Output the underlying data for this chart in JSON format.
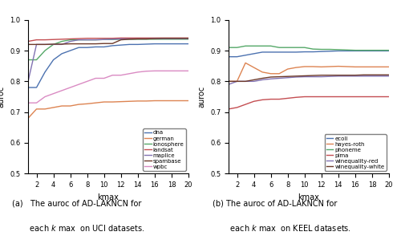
{
  "kmax": [
    1,
    2,
    3,
    4,
    5,
    6,
    7,
    8,
    9,
    10,
    11,
    12,
    13,
    14,
    15,
    16,
    17,
    18,
    19,
    20
  ],
  "uci": {
    "dna": [
      0.78,
      0.78,
      0.83,
      0.87,
      0.89,
      0.9,
      0.91,
      0.91,
      0.912,
      0.912,
      0.916,
      0.918,
      0.92,
      0.92,
      0.921,
      0.922,
      0.922,
      0.922,
      0.922,
      0.922
    ],
    "german": [
      0.68,
      0.71,
      0.71,
      0.715,
      0.72,
      0.72,
      0.725,
      0.727,
      0.73,
      0.733,
      0.733,
      0.734,
      0.735,
      0.736,
      0.736,
      0.737,
      0.737,
      0.737,
      0.737,
      0.737
    ],
    "ionosphere": [
      0.87,
      0.87,
      0.9,
      0.92,
      0.93,
      0.935,
      0.935,
      0.935,
      0.935,
      0.936,
      0.936,
      0.937,
      0.937,
      0.937,
      0.937,
      0.937,
      0.937,
      0.937,
      0.937,
      0.937
    ],
    "landsat": [
      0.93,
      0.935,
      0.935,
      0.936,
      0.937,
      0.938,
      0.939,
      0.94,
      0.94,
      0.94,
      0.94,
      0.941,
      0.941,
      0.941,
      0.941,
      0.941,
      0.941,
      0.941,
      0.941,
      0.941
    ],
    "maplice": [
      0.8,
      0.92,
      0.92,
      0.92,
      0.92,
      0.93,
      0.935,
      0.935,
      0.935,
      0.936,
      0.937,
      0.938,
      0.938,
      0.938,
      0.938,
      0.939,
      0.939,
      0.939,
      0.939,
      0.939
    ],
    "spambase": [
      0.92,
      0.92,
      0.92,
      0.921,
      0.921,
      0.922,
      0.922,
      0.922,
      0.922,
      0.923,
      0.923,
      0.935,
      0.937,
      0.938,
      0.938,
      0.939,
      0.94,
      0.94,
      0.94,
      0.94
    ],
    "wpbc": [
      0.73,
      0.73,
      0.75,
      0.76,
      0.77,
      0.78,
      0.79,
      0.8,
      0.81,
      0.81,
      0.82,
      0.82,
      0.825,
      0.83,
      0.833,
      0.834,
      0.834,
      0.834,
      0.834,
      0.834
    ]
  },
  "uci_colors": {
    "dna": "#4c72b0",
    "german": "#dd8452",
    "ionosphere": "#55a868",
    "landsat": "#c44e52",
    "maplice": "#8172b2",
    "spambase": "#6d3a2a",
    "wpbc": "#da8bc3"
  },
  "keel": {
    "ecoli": [
      0.88,
      0.88,
      0.885,
      0.89,
      0.895,
      0.895,
      0.895,
      0.895,
      0.895,
      0.896,
      0.896,
      0.897,
      0.898,
      0.899,
      0.899,
      0.899,
      0.899,
      0.899,
      0.899,
      0.899
    ],
    "hayes-roth": [
      0.8,
      0.8,
      0.86,
      0.845,
      0.83,
      0.825,
      0.825,
      0.84,
      0.845,
      0.848,
      0.848,
      0.847,
      0.848,
      0.849,
      0.848,
      0.847,
      0.847,
      0.847,
      0.847,
      0.847
    ],
    "phoneme": [
      0.91,
      0.91,
      0.915,
      0.915,
      0.915,
      0.915,
      0.91,
      0.91,
      0.91,
      0.91,
      0.905,
      0.904,
      0.904,
      0.903,
      0.902,
      0.901,
      0.901,
      0.901,
      0.901,
      0.901
    ],
    "pima": [
      0.71,
      0.715,
      0.725,
      0.735,
      0.74,
      0.742,
      0.742,
      0.745,
      0.748,
      0.75,
      0.75,
      0.75,
      0.75,
      0.75,
      0.75,
      0.75,
      0.75,
      0.75,
      0.75,
      0.75
    ],
    "winequality-red": [
      0.79,
      0.8,
      0.8,
      0.8,
      0.805,
      0.808,
      0.81,
      0.812,
      0.814,
      0.815,
      0.815,
      0.815,
      0.816,
      0.817,
      0.817,
      0.817,
      0.817,
      0.817,
      0.817,
      0.817
    ],
    "winequality-white": [
      0.8,
      0.8,
      0.8,
      0.805,
      0.81,
      0.814,
      0.815,
      0.816,
      0.817,
      0.818,
      0.819,
      0.82,
      0.82,
      0.82,
      0.82,
      0.82,
      0.821,
      0.821,
      0.821,
      0.821
    ]
  },
  "keel_colors": {
    "ecoli": "#4c72b0",
    "hayes-roth": "#dd8452",
    "phoneme": "#55a868",
    "pima": "#c44e52",
    "winequality-red": "#8172b2",
    "winequality-white": "#6d3a2a"
  },
  "ylim": [
    0.5,
    1.0
  ],
  "xlim": [
    1,
    20
  ],
  "xticks": [
    2,
    4,
    6,
    8,
    10,
    12,
    14,
    16,
    18,
    20
  ],
  "yticks": [
    0.5,
    0.6,
    0.7,
    0.8,
    0.9,
    1.0
  ],
  "xlabel": "kmax",
  "ylabel": "auroc",
  "linewidth": 1.0,
  "legend_fontsize": 5.0,
  "tick_fontsize": 6.0,
  "axis_label_fontsize": 7.0,
  "caption_fontsize": 7.0
}
